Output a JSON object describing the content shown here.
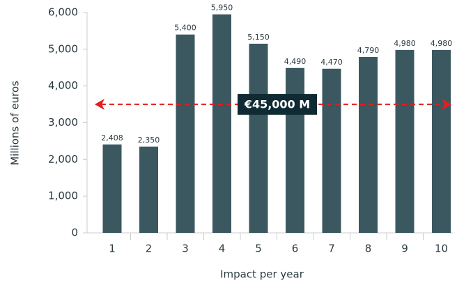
{
  "chart_data": {
    "type": "bar",
    "categories": [
      "1",
      "2",
      "3",
      "4",
      "5",
      "6",
      "7",
      "8",
      "9",
      "10"
    ],
    "values": [
      2408,
      2350,
      5400,
      5950,
      5150,
      4490,
      4470,
      4790,
      4980,
      4980
    ],
    "value_labels": [
      "2,408",
      "2,350",
      "5,400",
      "5,950",
      "5,150",
      "4,490",
      "4,470",
      "4,790",
      "4,980",
      "4,980"
    ],
    "color": "#3b5760",
    "xlabel": "Impact per year",
    "ylabel": "Millions of euros",
    "ylim": [
      0,
      6000
    ],
    "yticks": [
      0,
      {
        "value": 1000,
        "label": "1,000"
      },
      {
        "value": 2000,
        "label": "2,000"
      },
      {
        "value": 3000,
        "label": "3,000"
      },
      {
        "value": 4000,
        "label": "4,000"
      },
      {
        "value": 5000,
        "label": "5,000"
      },
      {
        "value": 6000,
        "label": "6,000"
      }
    ],
    "annotation": {
      "text": "€45,000 M",
      "y": 3500,
      "color": "#e02020",
      "box_color": "#0f2a33"
    }
  }
}
